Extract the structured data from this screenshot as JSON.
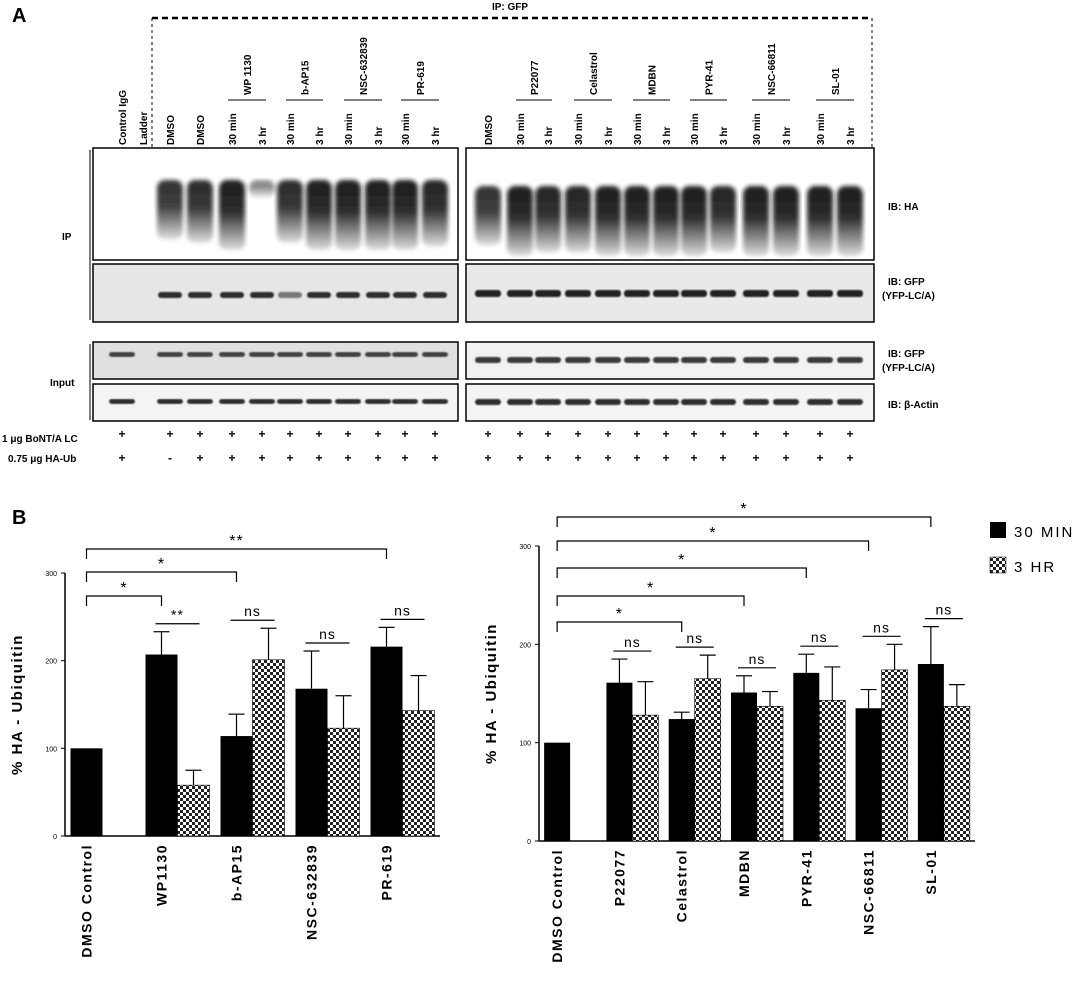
{
  "panel_a": {
    "label": "A",
    "ip_title": "IP: GFP",
    "groups_left": [
      "WP 1130",
      "b-AP15",
      "NSC-632839",
      "PR-619"
    ],
    "groups_right": [
      "P22077",
      "Celastrol",
      "MDBN",
      "PYR-41",
      "NSC-66811",
      "SL-01"
    ],
    "lanes_left": [
      "Control IgG",
      "Ladder",
      "DMSO",
      "DMSO",
      "30 min",
      "3 hr",
      "30 min",
      "3 hr",
      "30 min",
      "3 hr",
      "30 min",
      "3 hr"
    ],
    "lanes_right": [
      "DMSO",
      "30 min",
      "3 hr",
      "30 min",
      "3 hr",
      "30 min",
      "3 hr",
      "30 min",
      "3 hr",
      "30 min",
      "3 hr",
      "30 min",
      "3 hr"
    ],
    "row_labels": {
      "ip": "IP",
      "input": "Input"
    },
    "blot_labels": {
      "ha": "IB: HA",
      "gfp_line1": "IB: GFP",
      "gfp_line2": "(YFP-LC/A)",
      "gfp_in_line1": "IB: GFP",
      "gfp_in_line2": "(YFP-LC/A)",
      "actin": "IB: β-Actin"
    },
    "treatments": {
      "row1_label": "1 μg BoNT/A LC",
      "row2_label": "0.75 μg HA-Ub",
      "row1_left": [
        "+",
        "",
        "+",
        "+",
        "+",
        "+",
        "+",
        "+",
        "+",
        "+",
        "+",
        "+"
      ],
      "row2_left": [
        "+",
        "",
        "-",
        "+",
        "+",
        "+",
        "+",
        "+",
        "+",
        "+",
        "+",
        "+"
      ],
      "row1_right": [
        "+",
        "+",
        "+",
        "+",
        "+",
        "+",
        "+",
        "+",
        "+",
        "+",
        "+",
        "+",
        "+"
      ],
      "row2_right": [
        "+",
        "+",
        "+",
        "+",
        "+",
        "+",
        "+",
        "+",
        "+",
        "+",
        "+",
        "+",
        "+"
      ]
    }
  },
  "panel_b": {
    "label": "B"
  },
  "legend": {
    "items": [
      {
        "label": "30 MIN",
        "color": "#000000"
      },
      {
        "label": "3 HR",
        "pattern": "checker"
      }
    ]
  },
  "chart_data": [
    {
      "type": "bar",
      "ylabel": "% HA - Ubiquitin",
      "ylim": [
        0,
        300
      ],
      "yticks": [
        "0",
        "100",
        "200",
        "300"
      ],
      "categories": [
        "DMSO Control",
        "WP1130",
        "b-AP15",
        "NSC-632839",
        "PR-619"
      ],
      "series": [
        {
          "name": "30 MIN",
          "values": [
            100,
            207,
            114,
            168,
            216
          ],
          "errors": [
            0,
            26,
            25,
            43,
            22
          ]
        },
        {
          "name": "3 HR",
          "values": [
            null,
            58,
            201,
            123,
            143
          ],
          "errors": [
            null,
            17,
            36,
            37,
            40
          ]
        }
      ],
      "significance": [
        {
          "from": 0,
          "to": 1,
          "label": "*"
        },
        {
          "from": 0,
          "to": 2,
          "label": "*"
        },
        {
          "from": 0,
          "to": 4,
          "label": "**"
        }
      ],
      "pair_labels": [
        "",
        "**",
        "ns",
        "ns",
        "ns"
      ]
    },
    {
      "type": "bar",
      "ylabel": "% HA - Ubiquitin",
      "ylim": [
        0,
        300
      ],
      "yticks": [
        "0",
        "100",
        "200",
        "300"
      ],
      "categories": [
        "DMSO Control",
        "P22077",
        "Celastrol",
        "MDBN",
        "PYR-41",
        "NSC-66811",
        "SL-01"
      ],
      "series": [
        {
          "name": "30 MIN",
          "values": [
            100,
            161,
            124,
            151,
            171,
            135,
            180
          ],
          "errors": [
            0,
            24,
            7,
            17,
            19,
            19,
            38
          ]
        },
        {
          "name": "3 HR",
          "values": [
            null,
            128,
            165,
            137,
            143,
            174,
            137
          ],
          "errors": [
            null,
            34,
            24,
            15,
            34,
            26,
            22
          ]
        }
      ],
      "significance": [
        {
          "from": 0,
          "to": 2,
          "label": "*"
        },
        {
          "from": 0,
          "to": 3,
          "label": "*"
        },
        {
          "from": 0,
          "to": 4,
          "label": "*"
        },
        {
          "from": 0,
          "to": 5,
          "label": "*"
        },
        {
          "from": 0,
          "to": 6,
          "label": "*"
        }
      ],
      "pair_labels": [
        "",
        "ns",
        "ns",
        "ns",
        "ns",
        "ns",
        "ns"
      ]
    }
  ]
}
